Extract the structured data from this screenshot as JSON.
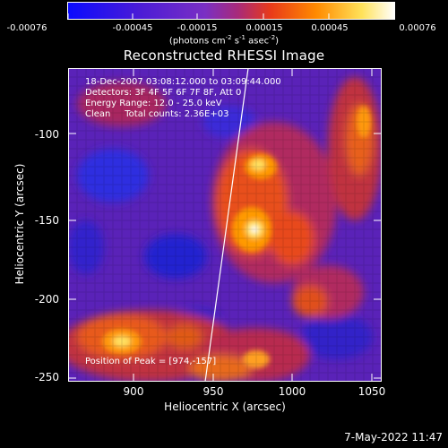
{
  "colorbar": {
    "ticks": [
      "-0.00076",
      "-0.00045",
      "-0.00015",
      "0.00015",
      "0.00045",
      "0.00076"
    ],
    "unit_parts": [
      "(photons cm",
      "-2",
      " s",
      "-1",
      " asec",
      "-2",
      ")"
    ]
  },
  "title": "Reconstructed RHESSI Image",
  "annotations": {
    "time": "18-Dec-2007 03:08:12.000 to 03:09:44.000",
    "detectors": "Detectors: 3F 4F 5F 6F 7F 8F, Att 0",
    "energy": "Energy Range: 12.0 - 25.0 keV",
    "clean": "Clean     Total counts: 2.36E+03",
    "peak": "Position of Peak = [974,-157]"
  },
  "axes": {
    "xlabel": "Heliocentric X (arcsec)",
    "ylabel": "Heliocentric Y (arcsec)",
    "xticks": [
      "900",
      "950",
      "1000",
      "1050"
    ],
    "yticks": [
      "-100",
      "-150",
      "-200",
      "-250"
    ],
    "xlim": [
      862,
      1050
    ],
    "ylim": [
      -250,
      -68
    ]
  },
  "timestamp": "7-May-2022 11:47",
  "colors": {
    "background": "#000000",
    "foreground": "#ffffff",
    "colormap": [
      "#0a0aff",
      "#4b1cd6",
      "#7a2fc4",
      "#b02a70",
      "#e83a1a",
      "#ff8a00",
      "#ffe25a",
      "#ffffff"
    ]
  }
}
